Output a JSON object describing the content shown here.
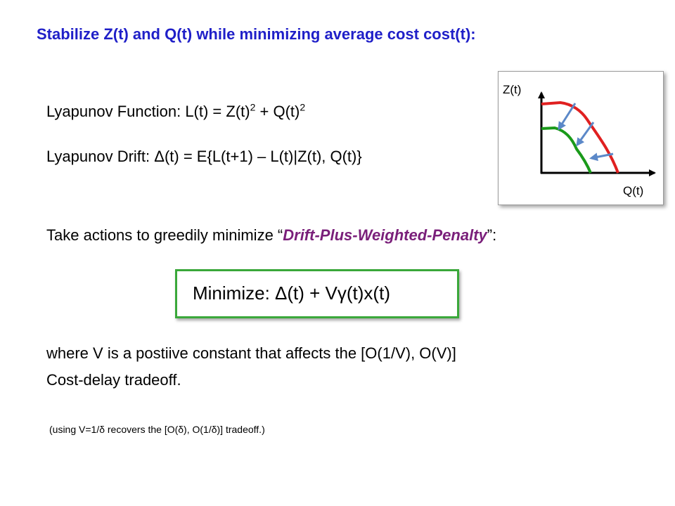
{
  "slide": {
    "title": "Stabilize Z(t) and Q(t) while minimizing average cost cost(t):",
    "lyapunov_function": {
      "prefix": "Lyapunov Function:  L(t) = Z(t)",
      "exp1": "2",
      "middle": " + Q(t)",
      "exp2": "2"
    },
    "lyapunov_drift": "Lyapunov Drift:  Δ(t) = E{L(t+1) – L(t)|Z(t), Q(t)}",
    "greedy": {
      "before": "Take actions to greedily minimize “",
      "emphasis": "Drift-Plus-Weighted-Penalty",
      "after": "”:"
    },
    "minimize": "Minimize:  Δ(t) + Vγ(t)x(t)",
    "where_line1": "where V is a postiive constant that affects the [O(1/V), O(V)]",
    "where_line2": "Cost-delay tradeoff.",
    "note": "(using V=1/δ recovers the [O(δ), O(1/δ)] tradeoff.)"
  },
  "graph": {
    "y_axis_label": "Z(t)",
    "x_axis_label": "Q(t)",
    "colors": {
      "outer_curve": "#e02020",
      "inner_curve": "#1a9a1a",
      "arrows": "#5b88c8",
      "axes": "#000000"
    }
  }
}
